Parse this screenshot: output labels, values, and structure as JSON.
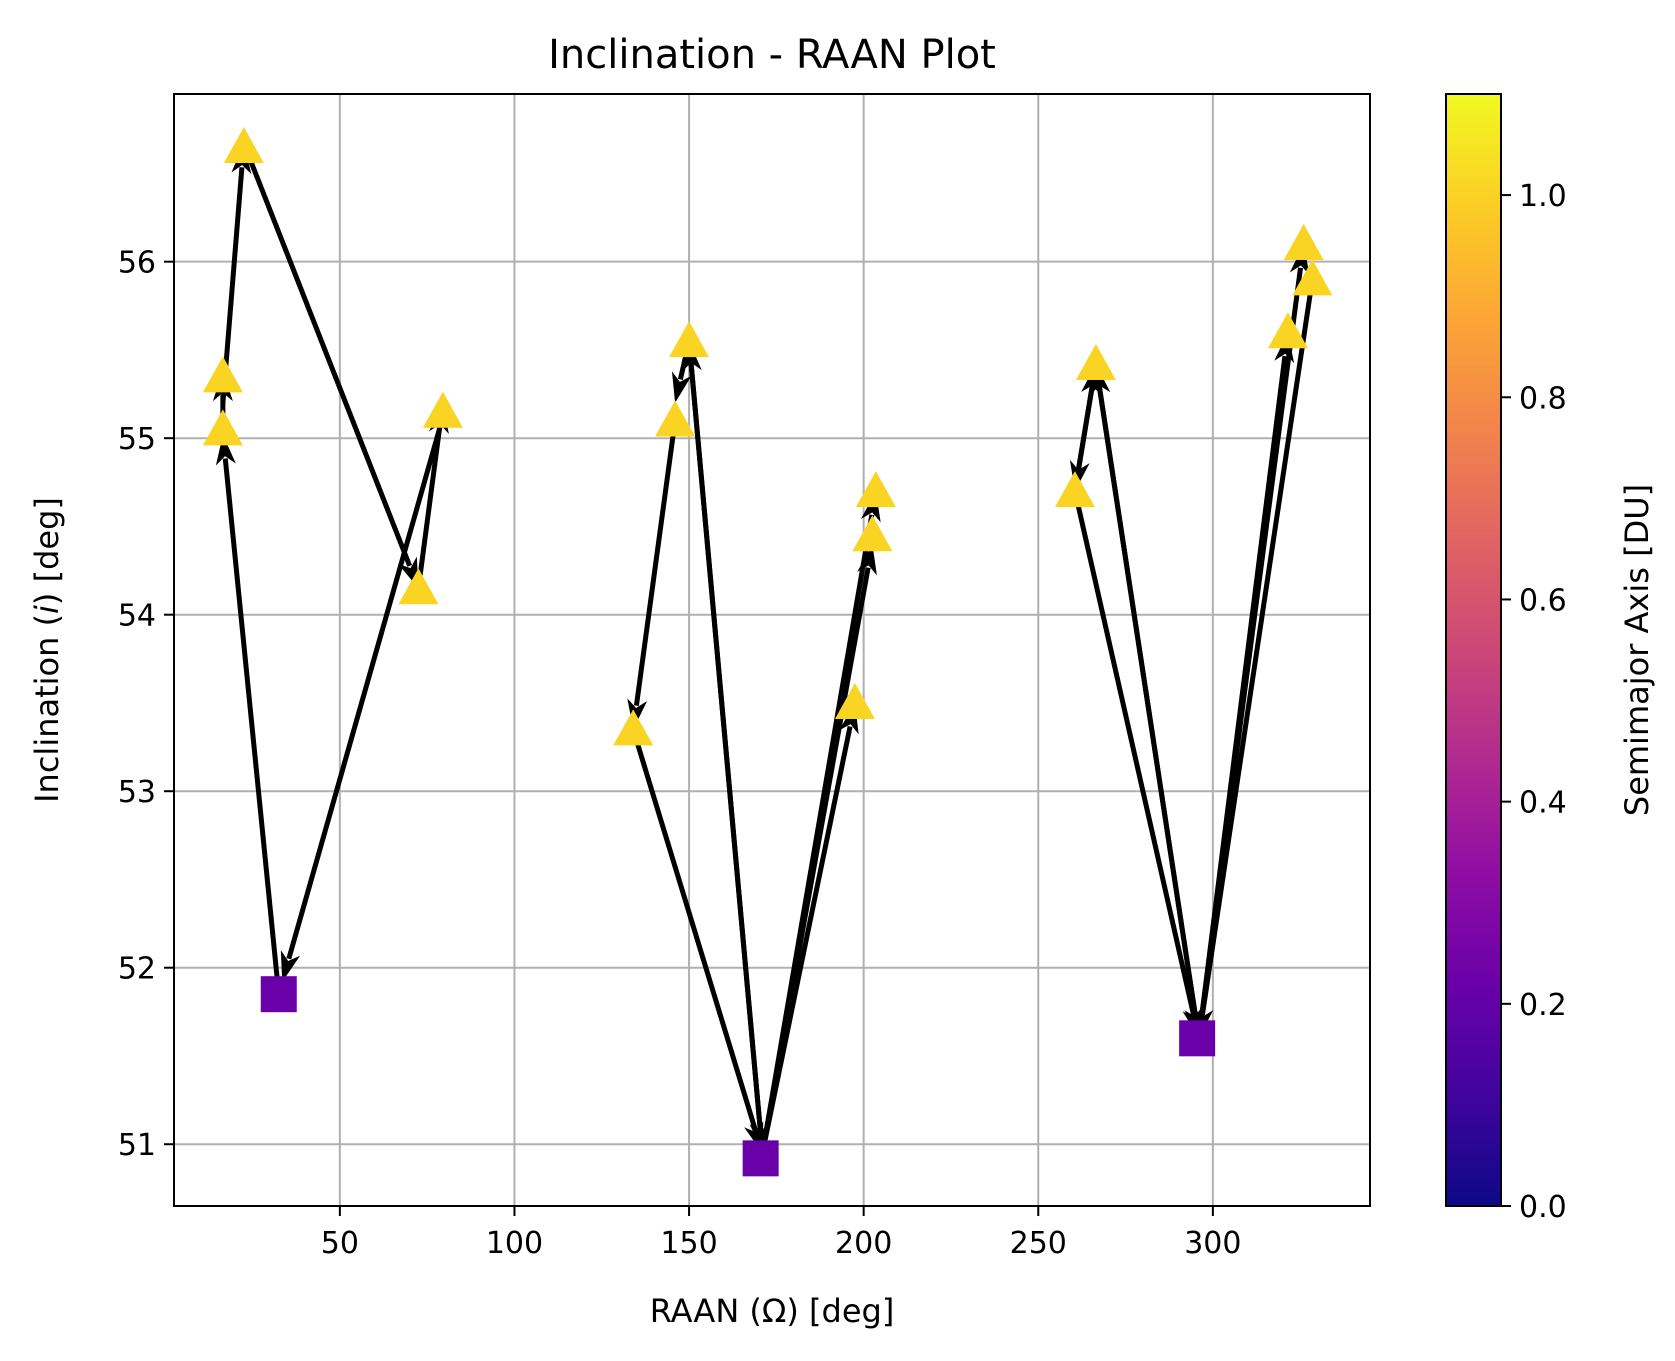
{
  "chart_data": {
    "type": "scatter",
    "title": "Inclination - RAAN Plot",
    "xlabel": "RAAN (Ω) [deg]",
    "ylabel_prefix": "Inclination (",
    "ylabel_var": "i",
    "ylabel_suffix": ") [deg]",
    "xlim": [
      2.5,
      345
    ],
    "ylim": [
      50.65,
      56.95
    ],
    "xticks": [
      50,
      100,
      150,
      200,
      250,
      300
    ],
    "xtick_labels": [
      "50",
      "100",
      "150",
      "200",
      "250",
      "300"
    ],
    "yticks": [
      51,
      52,
      53,
      54,
      55,
      56
    ],
    "ytick_labels": [
      "51",
      "52",
      "53",
      "54",
      "55",
      "56"
    ],
    "grid": true,
    "colorbar": {
      "label": "Semimajor Axis [DU]",
      "colormap": "plasma",
      "range": [
        0.0,
        1.1
      ],
      "ticks": [
        0.0,
        0.2,
        0.4,
        0.6,
        0.8,
        1.0
      ],
      "tick_labels": [
        "0.0",
        "0.2",
        "0.4",
        "0.6",
        "0.8",
        "1.0"
      ]
    },
    "markers": {
      "triangle_color": "#f9d423",
      "square_color": "#6a00a8",
      "arrow_color": "#000000"
    },
    "points": [
      {
        "id": "A1",
        "x": 16.5,
        "y": 55.05,
        "a": 1.0,
        "marker": "triangle"
      },
      {
        "id": "A2",
        "x": 16.5,
        "y": 55.35,
        "a": 1.0,
        "marker": "triangle"
      },
      {
        "id": "A3",
        "x": 22.5,
        "y": 56.65,
        "a": 1.0,
        "marker": "triangle"
      },
      {
        "id": "A4",
        "x": 79.5,
        "y": 55.15,
        "a": 1.0,
        "marker": "triangle"
      },
      {
        "id": "A5",
        "x": 72.5,
        "y": 54.15,
        "a": 1.0,
        "marker": "triangle"
      },
      {
        "id": "A6",
        "x": 32.5,
        "y": 51.85,
        "a": 0.29,
        "marker": "square"
      },
      {
        "id": "B1",
        "x": 150.0,
        "y": 55.55,
        "a": 1.0,
        "marker": "triangle"
      },
      {
        "id": "B2",
        "x": 146.0,
        "y": 55.1,
        "a": 1.0,
        "marker": "triangle"
      },
      {
        "id": "B3",
        "x": 134.0,
        "y": 53.35,
        "a": 1.0,
        "marker": "triangle"
      },
      {
        "id": "B4",
        "x": 203.5,
        "y": 54.7,
        "a": 1.0,
        "marker": "triangle"
      },
      {
        "id": "B5",
        "x": 202.5,
        "y": 54.45,
        "a": 1.0,
        "marker": "triangle"
      },
      {
        "id": "B6",
        "x": 197.5,
        "y": 53.5,
        "a": 1.0,
        "marker": "triangle"
      },
      {
        "id": "B7",
        "x": 170.5,
        "y": 50.92,
        "a": 0.29,
        "marker": "square"
      },
      {
        "id": "C1",
        "x": 266.5,
        "y": 55.42,
        "a": 1.0,
        "marker": "triangle"
      },
      {
        "id": "C2",
        "x": 260.5,
        "y": 54.7,
        "a": 1.0,
        "marker": "triangle"
      },
      {
        "id": "C3",
        "x": 326.0,
        "y": 56.1,
        "a": 1.0,
        "marker": "triangle"
      },
      {
        "id": "C4",
        "x": 328.5,
        "y": 55.9,
        "a": 1.0,
        "marker": "triangle"
      },
      {
        "id": "C5",
        "x": 321.5,
        "y": 55.6,
        "a": 1.0,
        "marker": "triangle"
      },
      {
        "id": "C6",
        "x": 295.5,
        "y": 51.6,
        "a": 0.29,
        "marker": "square"
      }
    ],
    "arrows": [
      {
        "from": [
          32.5,
          51.85
        ],
        "to": [
          16.5,
          55.02
        ]
      },
      {
        "from": [
          16.5,
          55.02
        ],
        "to": [
          16.5,
          55.38
        ]
      },
      {
        "from": [
          16.5,
          55.2
        ],
        "to": [
          22.5,
          56.67
        ]
      },
      {
        "from": [
          22.5,
          56.67
        ],
        "to": [
          72.5,
          54.15
        ]
      },
      {
        "from": [
          72.5,
          54.15
        ],
        "to": [
          79.5,
          55.2
        ]
      },
      {
        "from": [
          79.5,
          55.12
        ],
        "to": [
          33.5,
          51.92
        ]
      },
      {
        "from": [
          150.0,
          55.55
        ],
        "to": [
          146.0,
          55.2
        ]
      },
      {
        "from": [
          146.0,
          55.1
        ],
        "to": [
          134.0,
          53.35
        ]
      },
      {
        "from": [
          134.0,
          53.35
        ],
        "to": [
          171.0,
          50.95
        ]
      },
      {
        "from": [
          150.0,
          55.55
        ],
        "to": [
          171.0,
          50.95
        ]
      },
      {
        "from": [
          171.0,
          50.95
        ],
        "to": [
          150.0,
          55.55
        ]
      },
      {
        "from": [
          171.0,
          50.95
        ],
        "to": [
          197.5,
          53.5
        ]
      },
      {
        "from": [
          171.0,
          50.95
        ],
        "to": [
          202.5,
          54.4
        ]
      },
      {
        "from": [
          171.0,
          50.95
        ],
        "to": [
          203.5,
          54.7
        ]
      },
      {
        "from": [
          260.5,
          54.7
        ],
        "to": [
          266.5,
          55.42
        ]
      },
      {
        "from": [
          266.5,
          55.42
        ],
        "to": [
          260.5,
          54.7
        ]
      },
      {
        "from": [
          260.5,
          54.7
        ],
        "to": [
          296.0,
          51.6
        ]
      },
      {
        "from": [
          266.5,
          55.42
        ],
        "to": [
          296.0,
          51.6
        ]
      },
      {
        "from": [
          296.0,
          51.6
        ],
        "to": [
          266.5,
          55.42
        ]
      },
      {
        "from": [
          296.0,
          51.6
        ],
        "to": [
          321.5,
          55.6
        ]
      },
      {
        "from": [
          296.0,
          51.6
        ],
        "to": [
          326.0,
          56.1
        ]
      },
      {
        "from": [
          328.5,
          55.9
        ],
        "to": [
          296.0,
          51.6
        ]
      }
    ]
  }
}
